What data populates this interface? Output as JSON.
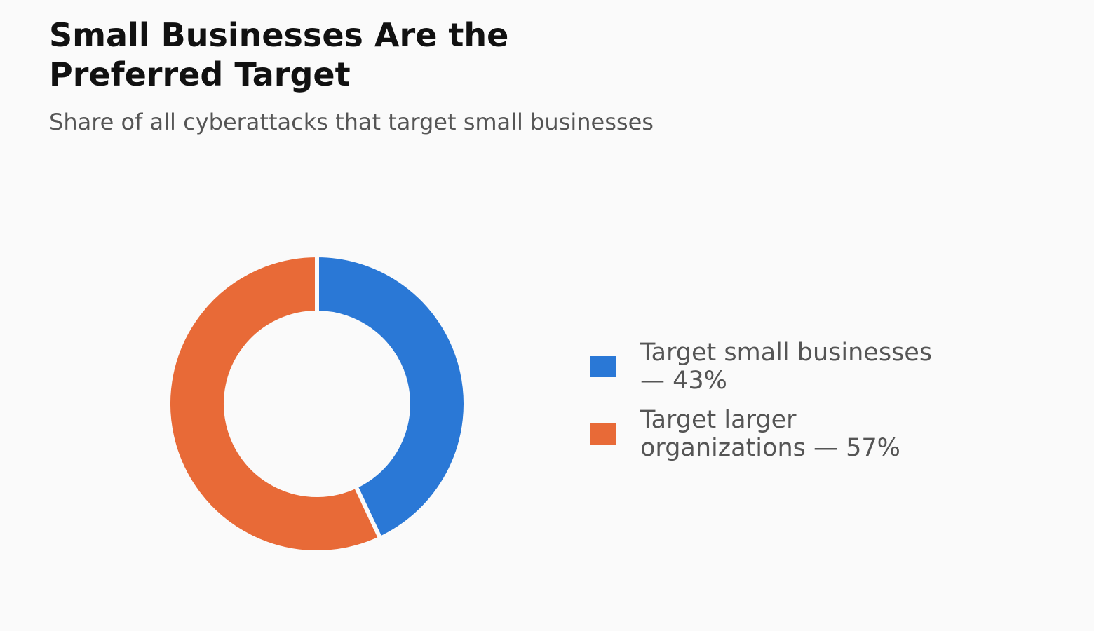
{
  "chart_data": {
    "type": "donut",
    "title": "Small Businesses Are the Preferred Target",
    "subtitle": "Share of all cyberattacks that target small businesses",
    "categories": [
      "Target small businesses — 43%",
      "Target larger organizations — 57%"
    ],
    "values": [
      43,
      57
    ],
    "colors": [
      "#2a78d6",
      "#e86a37"
    ],
    "legend": "right"
  }
}
